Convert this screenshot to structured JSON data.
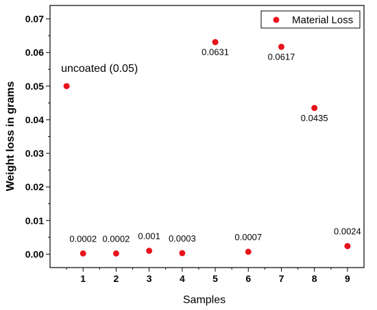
{
  "chart_data": {
    "type": "scatter",
    "title": "",
    "xlabel": "Samples",
    "ylabel": "Weight loss in grams",
    "xlim": [
      0,
      9.5
    ],
    "ylim": [
      -0.004,
      0.074
    ],
    "xticks": [
      "1",
      "2",
      "3",
      "4",
      "5",
      "6",
      "7",
      "8",
      "9"
    ],
    "yticks": [
      "0.00",
      "0.01",
      "0.02",
      "0.03",
      "0.04",
      "0.05",
      "0.06",
      "0.07"
    ],
    "grid": false,
    "legend_position": "top-right",
    "series": [
      {
        "name": "Material Loss",
        "color": "#e8141c",
        "points": [
          {
            "x": 0.5,
            "y": 0.05
          },
          {
            "x": 1,
            "y": 0.0002
          },
          {
            "x": 2,
            "y": 0.0002
          },
          {
            "x": 3,
            "y": 0.001
          },
          {
            "x": 4,
            "y": 0.0003
          },
          {
            "x": 5,
            "y": 0.0631
          },
          {
            "x": 6,
            "y": 0.0007
          },
          {
            "x": 7,
            "y": 0.0617
          },
          {
            "x": 8,
            "y": 0.0435
          },
          {
            "x": 9,
            "y": 0.0024
          }
        ]
      }
    ],
    "data_labels": [
      "uncoated (0.05)",
      "0.0002",
      "0.0002",
      "0.001",
      "0.0003",
      "0.0631",
      "0.0007",
      "0.0617",
      "0.0435",
      "0.0024"
    ]
  }
}
